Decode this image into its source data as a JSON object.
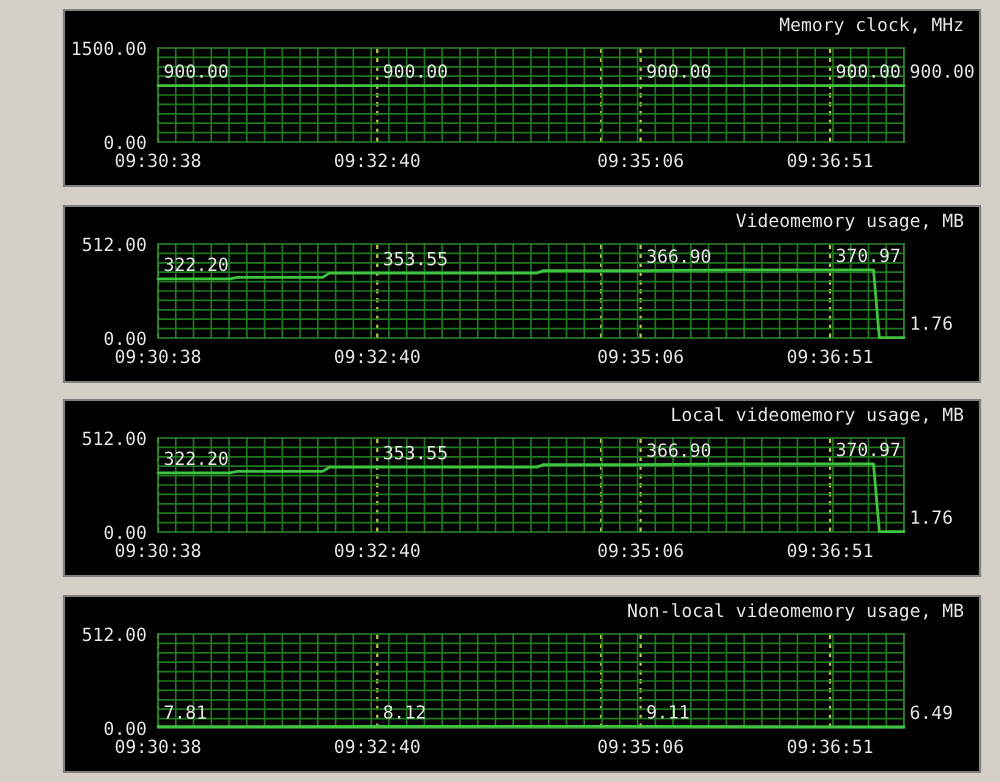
{
  "chart_data": [
    {
      "type": "line",
      "title": "Memory clock, MHz",
      "color": "#3ec43e",
      "x": [
        9.5106,
        9.5444,
        9.585,
        9.6142,
        9.6256
      ],
      "values": [
        900,
        900,
        900,
        900,
        900
      ],
      "value_labels": [
        "900.00",
        "900.00",
        "900.00",
        "900.00",
        "900.00"
      ],
      "xlim": [
        9.5106,
        9.6256
      ],
      "xticks": [
        {
          "value": 9.5106,
          "label": "09:30:38"
        },
        {
          "value": 9.5444,
          "label": "09:32:40"
        },
        {
          "value": 9.5789,
          "label": null
        },
        {
          "value": 9.585,
          "label": "09:35:06"
        },
        {
          "value": 9.6142,
          "label": "09:36:51"
        }
      ],
      "ylim": [
        0,
        1500
      ],
      "yticks": [
        {
          "value": 0,
          "label": "0.00"
        },
        {
          "value": 1500,
          "label": "1500.00"
        }
      ],
      "grid": true
    },
    {
      "type": "line",
      "title": "Videomemory usage, MB",
      "color": "#3ec43e",
      "x": [
        9.5106,
        9.5217,
        9.5228,
        9.536,
        9.537,
        9.5444,
        9.569,
        9.57,
        9.585,
        9.6,
        9.6142,
        9.6209,
        9.6218,
        9.6256
      ],
      "values": [
        322.2,
        322.2,
        330,
        330,
        353.55,
        353.55,
        353.55,
        366.9,
        366.9,
        370.97,
        370.97,
        370.97,
        1.76,
        1.76
      ],
      "value_labels": [
        "322.20",
        null,
        null,
        null,
        null,
        "353.55",
        null,
        null,
        "366.90",
        null,
        "370.97",
        null,
        null,
        "1.76"
      ],
      "xlim": [
        9.5106,
        9.6256
      ],
      "xticks": [
        {
          "value": 9.5106,
          "label": "09:30:38"
        },
        {
          "value": 9.5444,
          "label": "09:32:40"
        },
        {
          "value": 9.5789,
          "label": null
        },
        {
          "value": 9.585,
          "label": "09:35:06"
        },
        {
          "value": 9.6142,
          "label": "09:36:51"
        }
      ],
      "ylim": [
        0,
        512
      ],
      "yticks": [
        {
          "value": 0,
          "label": "0.00"
        },
        {
          "value": 512,
          "label": "512.00"
        }
      ],
      "grid": true
    },
    {
      "type": "line",
      "title": "Local videomemory usage, MB",
      "color": "#3ec43e",
      "x": [
        9.5106,
        9.5217,
        9.5228,
        9.536,
        9.537,
        9.5444,
        9.569,
        9.57,
        9.585,
        9.6,
        9.6142,
        9.6209,
        9.6218,
        9.6256
      ],
      "values": [
        322.2,
        322.2,
        330,
        330,
        353.55,
        353.55,
        353.55,
        366.9,
        366.9,
        370.97,
        370.97,
        370.97,
        1.76,
        1.76
      ],
      "value_labels": [
        "322.20",
        null,
        null,
        null,
        null,
        "353.55",
        null,
        null,
        "366.90",
        null,
        "370.97",
        null,
        null,
        "1.76"
      ],
      "xlim": [
        9.5106,
        9.6256
      ],
      "xticks": [
        {
          "value": 9.5106,
          "label": "09:30:38"
        },
        {
          "value": 9.5444,
          "label": "09:32:40"
        },
        {
          "value": 9.5789,
          "label": null
        },
        {
          "value": 9.585,
          "label": "09:35:06"
        },
        {
          "value": 9.6142,
          "label": "09:36:51"
        }
      ],
      "ylim": [
        0,
        512
      ],
      "yticks": [
        {
          "value": 0,
          "label": "0.00"
        },
        {
          "value": 512,
          "label": "512.00"
        }
      ],
      "grid": true
    },
    {
      "type": "line",
      "title": "Non-local videomemory usage, MB",
      "color": "#3ec43e",
      "x": [
        9.5106,
        9.5444,
        9.585,
        9.6256
      ],
      "values": [
        7.81,
        8.12,
        9.11,
        6.49
      ],
      "value_labels": [
        "7.81",
        "8.12",
        "9.11",
        "6.49"
      ],
      "xlim": [
        9.5106,
        9.6256
      ],
      "xticks": [
        {
          "value": 9.5106,
          "label": "09:30:38"
        },
        {
          "value": 9.5444,
          "label": "09:32:40"
        },
        {
          "value": 9.5789,
          "label": null
        },
        {
          "value": 9.585,
          "label": "09:35:06"
        },
        {
          "value": 9.6142,
          "label": "09:36:51"
        }
      ],
      "ylim": [
        0,
        512
      ],
      "yticks": [
        {
          "value": 0,
          "label": "0.00"
        },
        {
          "value": 512,
          "label": "512.00"
        }
      ],
      "grid": true
    }
  ]
}
